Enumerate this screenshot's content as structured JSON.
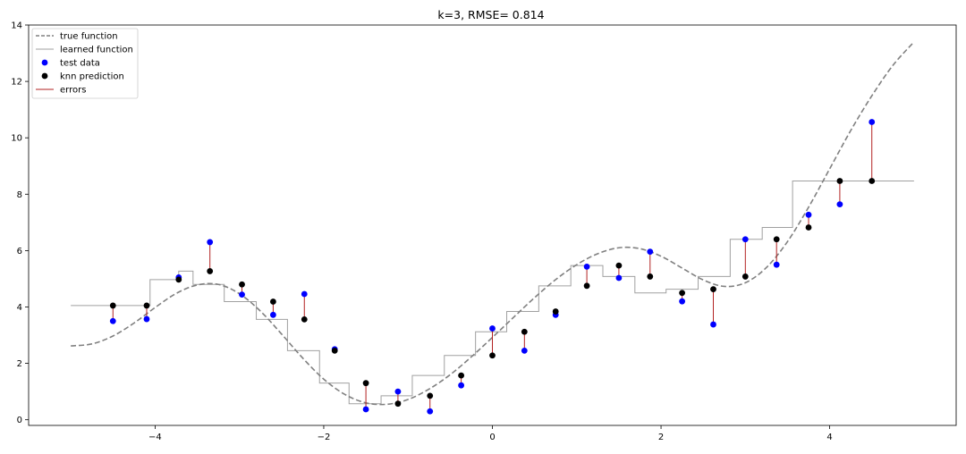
{
  "chart_data": {
    "type": "line",
    "title": "k=3, RMSE= 0.814",
    "xlabel": "",
    "ylabel": "",
    "xlim": [
      -5.5,
      5.5
    ],
    "ylim": [
      -0.2,
      14.0
    ],
    "x_ticks": [
      -4,
      -2,
      0,
      2,
      4
    ],
    "y_ticks": [
      0,
      2,
      4,
      6,
      8,
      10,
      12,
      14
    ],
    "x_tick_labels": [
      "−4",
      "−2",
      "0",
      "2",
      "4"
    ],
    "y_tick_labels": [
      "0",
      "2",
      "4",
      "6",
      "8",
      "10",
      "12",
      "14"
    ],
    "grid": false,
    "legend_position": "top-left",
    "legend": [
      {
        "label": "true function",
        "kind": "dashed-line",
        "color": "#808080"
      },
      {
        "label": "learned function",
        "kind": "line",
        "color": "#a0a0a0"
      },
      {
        "label": "test data",
        "kind": "marker",
        "color": "#0000ff"
      },
      {
        "label": "knn prediction",
        "kind": "marker",
        "color": "#000000"
      },
      {
        "label": "errors",
        "kind": "line",
        "color": "#b22222"
      }
    ],
    "true_function": {
      "name": "true function",
      "color": "#808080",
      "x": [
        -5.0,
        -4.75,
        -4.5,
        -4.25,
        -4.0,
        -3.75,
        -3.5,
        -3.25,
        -3.0,
        -2.75,
        -2.5,
        -2.25,
        -2.0,
        -1.75,
        -1.5,
        -1.25,
        -1.0,
        -0.75,
        -0.5,
        -0.25,
        0.0,
        0.25,
        0.5,
        0.75,
        1.0,
        1.25,
        1.5,
        1.75,
        2.0,
        2.25,
        2.5,
        2.75,
        3.0,
        3.25,
        3.5,
        3.75,
        4.0,
        4.25,
        4.5,
        4.75,
        5.0
      ],
      "y": [
        2.62,
        2.69,
        2.97,
        3.43,
        3.98,
        4.48,
        4.78,
        4.8,
        4.47,
        3.85,
        3.04,
        2.19,
        1.44,
        0.9,
        0.6,
        0.55,
        0.72,
        1.09,
        1.6,
        2.23,
        2.92,
        3.63,
        4.33,
        4.97,
        5.5,
        5.89,
        6.1,
        6.07,
        5.8,
        5.38,
        4.96,
        4.73,
        4.86,
        5.4,
        6.32,
        7.54,
        8.9,
        10.26,
        11.49,
        12.57,
        13.4
      ]
    },
    "learned_function": {
      "name": "learned function",
      "color": "#a0a0a0",
      "breaks": [
        -4.06,
        -3.72,
        -3.55,
        -3.18,
        -2.8,
        -2.43,
        -2.05,
        -1.7,
        -1.32,
        -0.95,
        -0.57,
        -0.2,
        0.17,
        0.55,
        0.93,
        1.31,
        1.69,
        2.06,
        2.44,
        2.82,
        3.2,
        3.56,
        3.94,
        4.32
      ],
      "levels": [
        4.05,
        4.97,
        5.27,
        4.8,
        4.19,
        3.56,
        2.45,
        1.3,
        0.57,
        0.85,
        1.57,
        2.28,
        3.12,
        3.84,
        4.75,
        5.47,
        5.08,
        4.5,
        4.63,
        5.08,
        6.4,
        6.82,
        8.47,
        8.47
      ],
      "x_start": -5.0,
      "x_end": 5.0
    },
    "test_data": {
      "name": "test data",
      "color": "#0000ff",
      "x": [
        -4.5,
        -4.1,
        -3.72,
        -3.35,
        -2.97,
        -2.6,
        -2.23,
        -1.87,
        -1.5,
        -1.12,
        -0.74,
        -0.37,
        0.0,
        0.38,
        0.75,
        1.12,
        1.5,
        1.87,
        2.25,
        2.62,
        3.0,
        3.37,
        3.75,
        4.12,
        4.5
      ],
      "y": [
        3.5,
        3.57,
        5.05,
        6.3,
        4.44,
        3.72,
        4.46,
        2.5,
        0.37,
        1.0,
        0.3,
        1.22,
        3.24,
        2.45,
        3.72,
        5.43,
        5.03,
        5.96,
        4.2,
        3.38,
        6.4,
        5.5,
        7.27,
        7.64,
        10.56
      ]
    },
    "knn_prediction": {
      "name": "knn prediction",
      "color": "#000000",
      "x": [
        -4.5,
        -4.1,
        -3.72,
        -3.35,
        -2.97,
        -2.6,
        -2.23,
        -1.87,
        -1.5,
        -1.12,
        -0.74,
        -0.37,
        0.0,
        0.38,
        0.75,
        1.12,
        1.5,
        1.87,
        2.25,
        2.62,
        3.0,
        3.37,
        3.75,
        4.12,
        4.5
      ],
      "y": [
        4.05,
        4.05,
        4.97,
        5.27,
        4.8,
        4.19,
        3.56,
        2.45,
        1.3,
        0.57,
        0.85,
        1.57,
        2.28,
        3.12,
        3.84,
        4.75,
        5.47,
        5.08,
        4.5,
        4.63,
        5.08,
        6.4,
        6.82,
        8.47,
        8.47
      ]
    },
    "errors": {
      "name": "errors",
      "color": "#b22222"
    }
  }
}
